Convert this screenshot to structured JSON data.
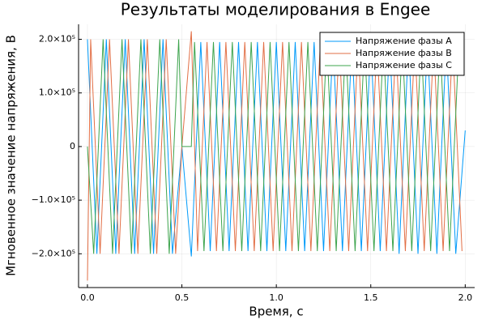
{
  "chart_data": {
    "type": "line",
    "title": "Результаты моделирования в Engee",
    "xlabel": "Время, с",
    "ylabel": "Мгновенное значение напряжения, В",
    "xlim": [
      -0.047,
      2.05
    ],
    "ylim": [
      -263000,
      228000
    ],
    "xticks": [
      {
        "value": 0,
        "label": "0.0"
      },
      0.5,
      {
        "value": 1,
        "label": "1.0"
      },
      1.5,
      {
        "value": 2,
        "label": "2.0"
      }
    ],
    "yticks": [
      {
        "value": -200000,
        "label": "−2.0×10⁵"
      },
      {
        "value": -100000,
        "label": "−1.0×10⁵"
      },
      0,
      {
        "value": 100000,
        "label": "1.0×10⁵"
      },
      {
        "value": 200000,
        "label": "2.0×10⁵"
      }
    ],
    "grid": true,
    "legend": "top-right",
    "series": [
      {
        "name": "Напряжение фазы A",
        "color": "#009af9",
        "x": [
          0,
          0.05,
          0.1,
          0.15,
          0.2,
          0.25,
          0.3,
          0.35,
          0.4,
          0.45,
          0.5,
          0.55,
          0.6,
          0.65,
          0.7,
          0.75,
          0.8,
          0.85,
          0.9,
          0.95,
          1.0,
          1.05,
          1.1,
          1.15,
          1.2,
          1.25,
          1.3,
          1.35,
          1.4,
          1.45,
          1.5,
          1.55,
          1.6,
          1.65,
          1.7,
          1.75,
          1.8,
          1.85,
          1.9,
          1.95,
          2.0
        ],
        "values": [
          200000,
          -200000,
          200000,
          -200000,
          200000,
          -200000,
          200000,
          -200000,
          200000,
          -200000,
          0,
          -205000,
          195000,
          -195000,
          195000,
          -195000,
          195000,
          -195000,
          195000,
          -195000,
          195000,
          -195000,
          195000,
          -195000,
          195000,
          -195000,
          195000,
          -195000,
          195000,
          -195000,
          195000,
          -195000,
          195000,
          -200000,
          195000,
          -200000,
          195000,
          -200000,
          195000,
          -200000,
          30000
        ]
      },
      {
        "name": "Напряжение фазы B",
        "color": "#e26f46",
        "x": [
          0,
          0.017,
          0.067,
          0.117,
          0.167,
          0.217,
          0.267,
          0.317,
          0.367,
          0.417,
          0.467,
          0.5,
          0.55,
          0.583,
          0.633,
          0.683,
          0.733,
          0.783,
          0.833,
          0.883,
          0.933,
          0.983,
          1.033,
          1.083,
          1.133,
          1.183,
          1.233,
          1.283,
          1.333,
          1.383,
          1.433,
          1.483,
          1.533,
          1.583,
          1.633,
          1.683,
          1.733,
          1.783,
          1.833,
          1.883,
          1.933,
          1.983
        ],
        "values": [
          -250000,
          200000,
          -200000,
          200000,
          -200000,
          200000,
          -200000,
          200000,
          -200000,
          200000,
          -200000,
          0,
          215000,
          -195000,
          195000,
          -195000,
          195000,
          -195000,
          195000,
          -195000,
          195000,
          -195000,
          195000,
          -195000,
          195000,
          -195000,
          195000,
          -195000,
          195000,
          -195000,
          195000,
          -195000,
          195000,
          -195000,
          195000,
          -195000,
          195000,
          -195000,
          195000,
          -195000,
          195000,
          -195000
        ]
      },
      {
        "name": "Напряжение фазы C",
        "color": "#3da44d",
        "x": [
          0,
          0.033,
          0.083,
          0.133,
          0.183,
          0.233,
          0.283,
          0.333,
          0.383,
          0.433,
          0.483,
          0.5,
          0.55,
          0.567,
          0.617,
          0.667,
          0.717,
          0.767,
          0.817,
          0.867,
          0.917,
          0.967,
          1.017,
          1.067,
          1.117,
          1.167,
          1.217,
          1.267,
          1.317,
          1.367,
          1.417,
          1.467,
          1.517,
          1.567,
          1.617,
          1.667,
          1.717,
          1.767,
          1.817,
          1.867,
          1.917,
          1.967
        ],
        "values": [
          0,
          -200000,
          200000,
          -200000,
          200000,
          -200000,
          200000,
          -200000,
          200000,
          -200000,
          200000,
          0,
          0,
          195000,
          -195000,
          195000,
          -195000,
          195000,
          -195000,
          195000,
          -195000,
          195000,
          -195000,
          195000,
          -195000,
          195000,
          -195000,
          195000,
          -195000,
          195000,
          -195000,
          195000,
          -195000,
          195000,
          -195000,
          195000,
          -195000,
          195000,
          -195000,
          195000,
          -195000,
          195000
        ]
      }
    ]
  }
}
